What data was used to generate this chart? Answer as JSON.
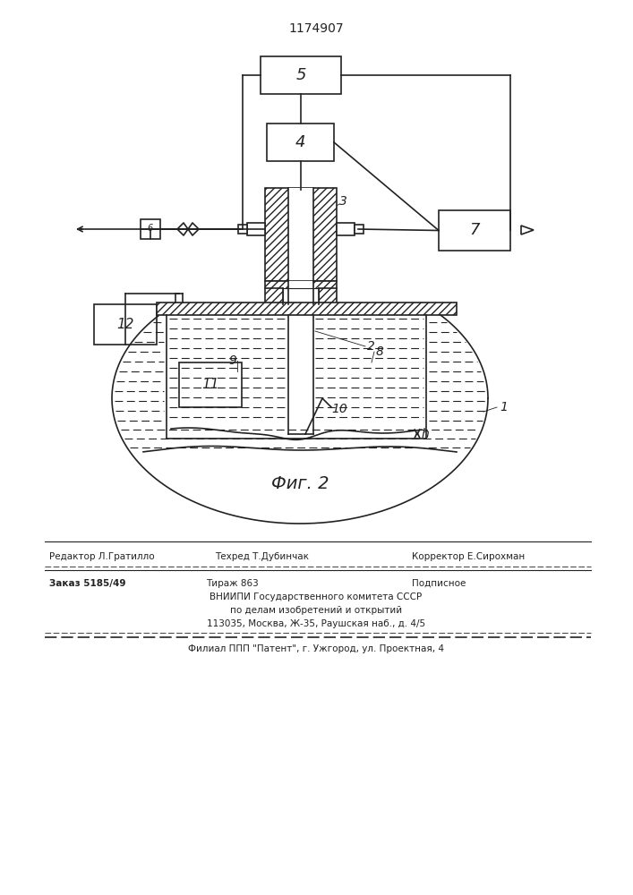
{
  "patent_number": "1174907",
  "fig_label": "Фиг. 2",
  "lc": "#222222",
  "lw": 1.2,
  "footer_line1a": "Редактор Л.Гратилло",
  "footer_line1b": "Техред Т.Дубинчак",
  "footer_line1c": "Корректор Е.Сирохман",
  "footer_line2a": "Заказ 5185/49",
  "footer_line2b": "Тираж 863",
  "footer_line2c": "Подписное",
  "footer_line3": "ВНИИПИ Государственного комитета СССР",
  "footer_line4": "по делам изобретений и открытий",
  "footer_line5": "113035, Москва, Ж-35, Раушская наб., д. 4/5",
  "footer_line6": "Филиал ППП \"Патент\", г. Ужгород, ул. Проектная, 4"
}
